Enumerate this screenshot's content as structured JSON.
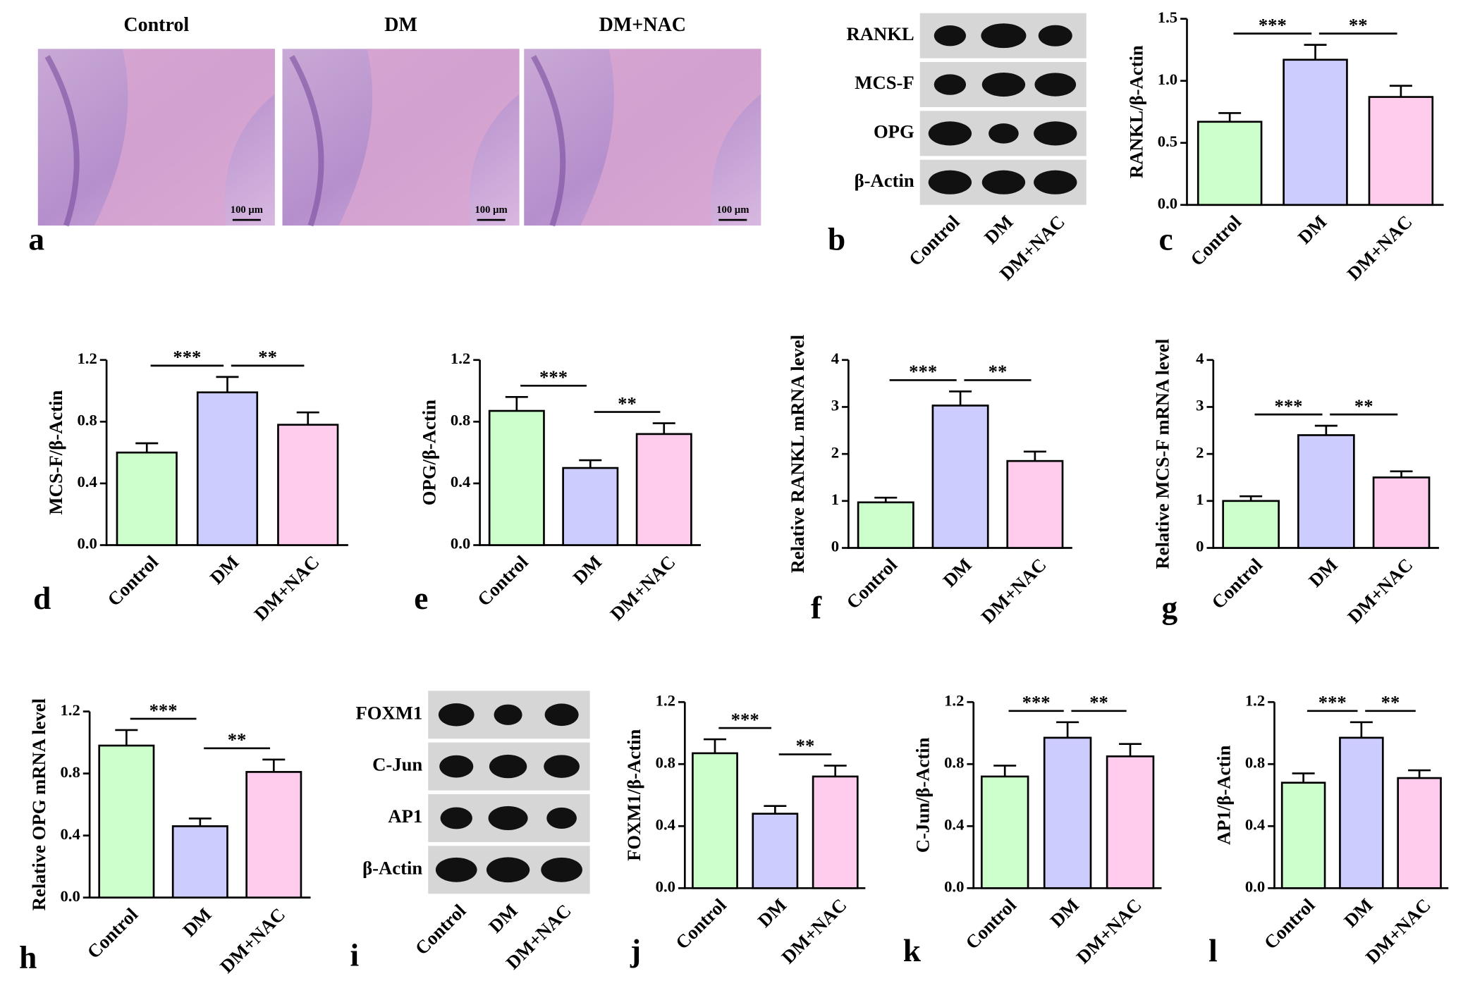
{
  "histology": {
    "panel_label": "a",
    "images": [
      {
        "title": "Control",
        "scale_bar": "100 μm"
      },
      {
        "title": "DM",
        "scale_bar": "100 μm"
      },
      {
        "title": "DM+NAC",
        "scale_bar": "100 μm"
      }
    ]
  },
  "blots": [
    {
      "panel_label": "b",
      "rows": [
        "RANKL",
        "MCS-F",
        "OPG",
        "β-Actin"
      ],
      "lanes": [
        "Control",
        "DM",
        "DM+NAC"
      ]
    },
    {
      "panel_label": "i",
      "rows": [
        "FOXM1",
        "C-Jun",
        "AP1",
        "β-Actin"
      ],
      "lanes": [
        "Control",
        "DM",
        "DM+NAC"
      ]
    }
  ],
  "chart_data": [
    {
      "type": "bar",
      "panel_label": "c",
      "ylabel": "RANKL/β-Actin",
      "categories": [
        "Control",
        "DM",
        "DM+NAC"
      ],
      "values": [
        0.67,
        1.17,
        0.87
      ],
      "errors": [
        0.07,
        0.12,
        0.09
      ],
      "colors": [
        "#ccffcc",
        "#ccccff",
        "#ffccee"
      ],
      "ylim": [
        0,
        1.5
      ],
      "yticks": [
        {
          "value": 0,
          "label": "0.0"
        },
        0.5,
        {
          "value": 1,
          "label": "1.0"
        },
        1.5
      ],
      "annotations": [
        {
          "text": "***",
          "pair": [
            "Control",
            "DM"
          ]
        },
        {
          "text": "**",
          "pair": [
            "DM",
            "DM+NAC"
          ]
        }
      ]
    },
    {
      "type": "bar",
      "panel_label": "d",
      "ylabel": "MCS-F/β-Actin",
      "categories": [
        "Control",
        "DM",
        "DM+NAC"
      ],
      "values": [
        0.6,
        0.99,
        0.78
      ],
      "errors": [
        0.06,
        0.1,
        0.08
      ],
      "colors": [
        "#ccffcc",
        "#ccccff",
        "#ffccee"
      ],
      "ylim": [
        0,
        1.2
      ],
      "yticks": [
        {
          "value": 0,
          "label": "0.0"
        },
        0.4,
        0.8,
        1.2
      ],
      "annotations": [
        {
          "text": "***",
          "pair": [
            "Control",
            "DM"
          ]
        },
        {
          "text": "**",
          "pair": [
            "DM",
            "DM+NAC"
          ]
        }
      ]
    },
    {
      "type": "bar",
      "panel_label": "e",
      "ylabel": "OPG/β-Actin",
      "categories": [
        "Control",
        "DM",
        "DM+NAC"
      ],
      "values": [
        0.87,
        0.5,
        0.72
      ],
      "errors": [
        0.09,
        0.05,
        0.07
      ],
      "colors": [
        "#ccffcc",
        "#ccccff",
        "#ffccee"
      ],
      "ylim": [
        0,
        1.2
      ],
      "yticks": [
        {
          "value": 0,
          "label": "0.0"
        },
        0.4,
        0.8,
        1.2
      ],
      "annotations": [
        {
          "text": "***",
          "pair": [
            "Control",
            "DM"
          ]
        },
        {
          "text": "**",
          "pair": [
            "DM",
            "DM+NAC"
          ]
        }
      ]
    },
    {
      "type": "bar",
      "panel_label": "f",
      "ylabel": "Relative RANKL mRNA level",
      "categories": [
        "Control",
        "DM",
        "DM+NAC"
      ],
      "values": [
        0.97,
        3.03,
        1.85
      ],
      "errors": [
        0.1,
        0.3,
        0.2
      ],
      "colors": [
        "#ccffcc",
        "#ccccff",
        "#ffccee"
      ],
      "ylim": [
        0,
        4
      ],
      "yticks": [
        0,
        1,
        2,
        3,
        4
      ],
      "annotations": [
        {
          "text": "***",
          "pair": [
            "Control",
            "DM"
          ]
        },
        {
          "text": "**",
          "pair": [
            "DM",
            "DM+NAC"
          ]
        }
      ]
    },
    {
      "type": "bar",
      "panel_label": "g",
      "ylabel": "Relative MCS-F mRNA level",
      "categories": [
        "Control",
        "DM",
        "DM+NAC"
      ],
      "values": [
        1.0,
        2.4,
        1.5
      ],
      "errors": [
        0.1,
        0.2,
        0.13
      ],
      "colors": [
        "#ccffcc",
        "#ccccff",
        "#ffccee"
      ],
      "ylim": [
        0,
        4
      ],
      "yticks": [
        0,
        1,
        2,
        3,
        4
      ],
      "annotations": [
        {
          "text": "***",
          "pair": [
            "Control",
            "DM"
          ]
        },
        {
          "text": "**",
          "pair": [
            "DM",
            "DM+NAC"
          ]
        }
      ]
    },
    {
      "type": "bar",
      "panel_label": "h",
      "ylabel": "Relative OPG mRNA level",
      "categories": [
        "Control",
        "DM",
        "DM+NAC"
      ],
      "values": [
        0.98,
        0.46,
        0.81
      ],
      "errors": [
        0.1,
        0.05,
        0.08
      ],
      "colors": [
        "#ccffcc",
        "#ccccff",
        "#ffccee"
      ],
      "ylim": [
        0,
        1.2
      ],
      "yticks": [
        {
          "value": 0,
          "label": "0.0"
        },
        0.4,
        0.8,
        1.2
      ],
      "annotations": [
        {
          "text": "***",
          "pair": [
            "Control",
            "DM"
          ]
        },
        {
          "text": "**",
          "pair": [
            "DM",
            "DM+NAC"
          ]
        }
      ]
    },
    {
      "type": "bar",
      "panel_label": "j",
      "ylabel": "FOXM1/β-Actin",
      "categories": [
        "Control",
        "DM",
        "DM+NAC"
      ],
      "values": [
        0.87,
        0.48,
        0.72
      ],
      "errors": [
        0.09,
        0.05,
        0.07
      ],
      "colors": [
        "#ccffcc",
        "#ccccff",
        "#ffccee"
      ],
      "ylim": [
        0,
        1.2
      ],
      "yticks": [
        {
          "value": 0,
          "label": "0.0"
        },
        0.4,
        0.8,
        1.2
      ],
      "annotations": [
        {
          "text": "***",
          "pair": [
            "Control",
            "DM"
          ]
        },
        {
          "text": "**",
          "pair": [
            "DM",
            "DM+NAC"
          ]
        }
      ]
    },
    {
      "type": "bar",
      "panel_label": "k",
      "ylabel": "C-Jun/β-Actin",
      "categories": [
        "Control",
        "DM",
        "DM+NAC"
      ],
      "values": [
        0.72,
        0.97,
        0.85
      ],
      "errors": [
        0.07,
        0.1,
        0.08
      ],
      "colors": [
        "#ccffcc",
        "#ccccff",
        "#ffccee"
      ],
      "ylim": [
        0,
        1.2
      ],
      "yticks": [
        {
          "value": 0,
          "label": "0.0"
        },
        0.4,
        0.8,
        1.2
      ],
      "annotations": [
        {
          "text": "***",
          "pair": [
            "Control",
            "DM"
          ]
        },
        {
          "text": "**",
          "pair": [
            "DM",
            "DM+NAC"
          ]
        }
      ]
    },
    {
      "type": "bar",
      "panel_label": "l",
      "ylabel": "AP1/β-Actin",
      "categories": [
        "Control",
        "DM",
        "DM+NAC"
      ],
      "values": [
        0.68,
        0.97,
        0.71
      ],
      "errors": [
        0.06,
        0.1,
        0.05
      ],
      "colors": [
        "#ccffcc",
        "#ccccff",
        "#ffccee"
      ],
      "ylim": [
        0,
        1.2
      ],
      "yticks": [
        {
          "value": 0,
          "label": "0.0"
        },
        0.4,
        0.8,
        1.2
      ],
      "annotations": [
        {
          "text": "***",
          "pair": [
            "Control",
            "DM"
          ]
        },
        {
          "text": "**",
          "pair": [
            "DM",
            "DM+NAC"
          ]
        }
      ]
    }
  ]
}
